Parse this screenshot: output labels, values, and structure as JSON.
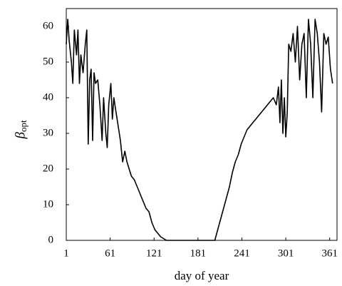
{
  "chart_data": {
    "type": "line",
    "xlabel": "day of year",
    "ylabel": "β",
    "ylabel_subscript": "opt",
    "x": [
      1,
      3,
      5,
      8,
      10,
      12,
      15,
      17,
      19,
      21,
      24,
      27,
      29,
      31,
      33,
      35,
      37,
      39,
      41,
      44,
      47,
      50,
      52,
      55,
      57,
      59,
      62,
      64,
      66,
      69,
      72,
      75,
      78,
      81,
      84,
      87,
      90,
      94,
      98,
      102,
      106,
      110,
      114,
      118,
      122,
      126,
      130,
      134,
      138,
      142,
      150,
      170,
      190,
      200,
      204,
      208,
      212,
      216,
      220,
      224,
      228,
      232,
      236,
      240,
      244,
      248,
      252,
      256,
      260,
      264,
      268,
      272,
      276,
      280,
      284,
      288,
      291,
      293,
      295,
      297,
      299,
      301,
      303,
      305,
      308,
      311,
      314,
      317,
      320,
      323,
      326,
      329,
      332,
      335,
      338,
      341,
      344,
      347,
      350,
      353,
      356,
      359,
      362,
      365
    ],
    "series": [
      {
        "color": "#000000",
        "values": [
          55,
          62,
          56,
          50,
          44,
          59,
          52,
          59,
          44,
          52,
          47,
          55,
          59,
          27,
          45,
          48,
          28,
          47,
          44,
          45,
          38,
          28,
          40,
          30,
          26,
          38,
          44,
          34,
          40,
          36,
          32,
          28,
          22,
          25,
          22,
          20,
          18,
          17,
          15,
          13,
          11,
          9,
          8,
          5,
          3,
          2,
          1,
          0.5,
          0,
          0,
          0,
          0,
          0,
          0,
          0,
          3,
          6,
          9,
          12,
          15,
          19,
          22,
          24,
          27,
          29,
          31,
          32,
          33,
          34,
          35,
          36,
          37,
          38,
          39,
          40,
          38,
          43,
          33,
          45,
          30,
          40,
          29,
          36,
          55,
          53,
          58,
          50,
          60,
          45,
          55,
          58,
          40,
          62,
          55,
          40,
          62,
          58,
          50,
          36,
          58,
          55,
          57,
          48,
          44
        ]
      }
    ],
    "xlim": [
      1,
      371
    ],
    "xticks": [
      1,
      61,
      121,
      181,
      241,
      301,
      361
    ],
    "ylim": [
      0,
      65
    ],
    "yticks": [
      0,
      10,
      20,
      30,
      40,
      50,
      60
    ]
  }
}
